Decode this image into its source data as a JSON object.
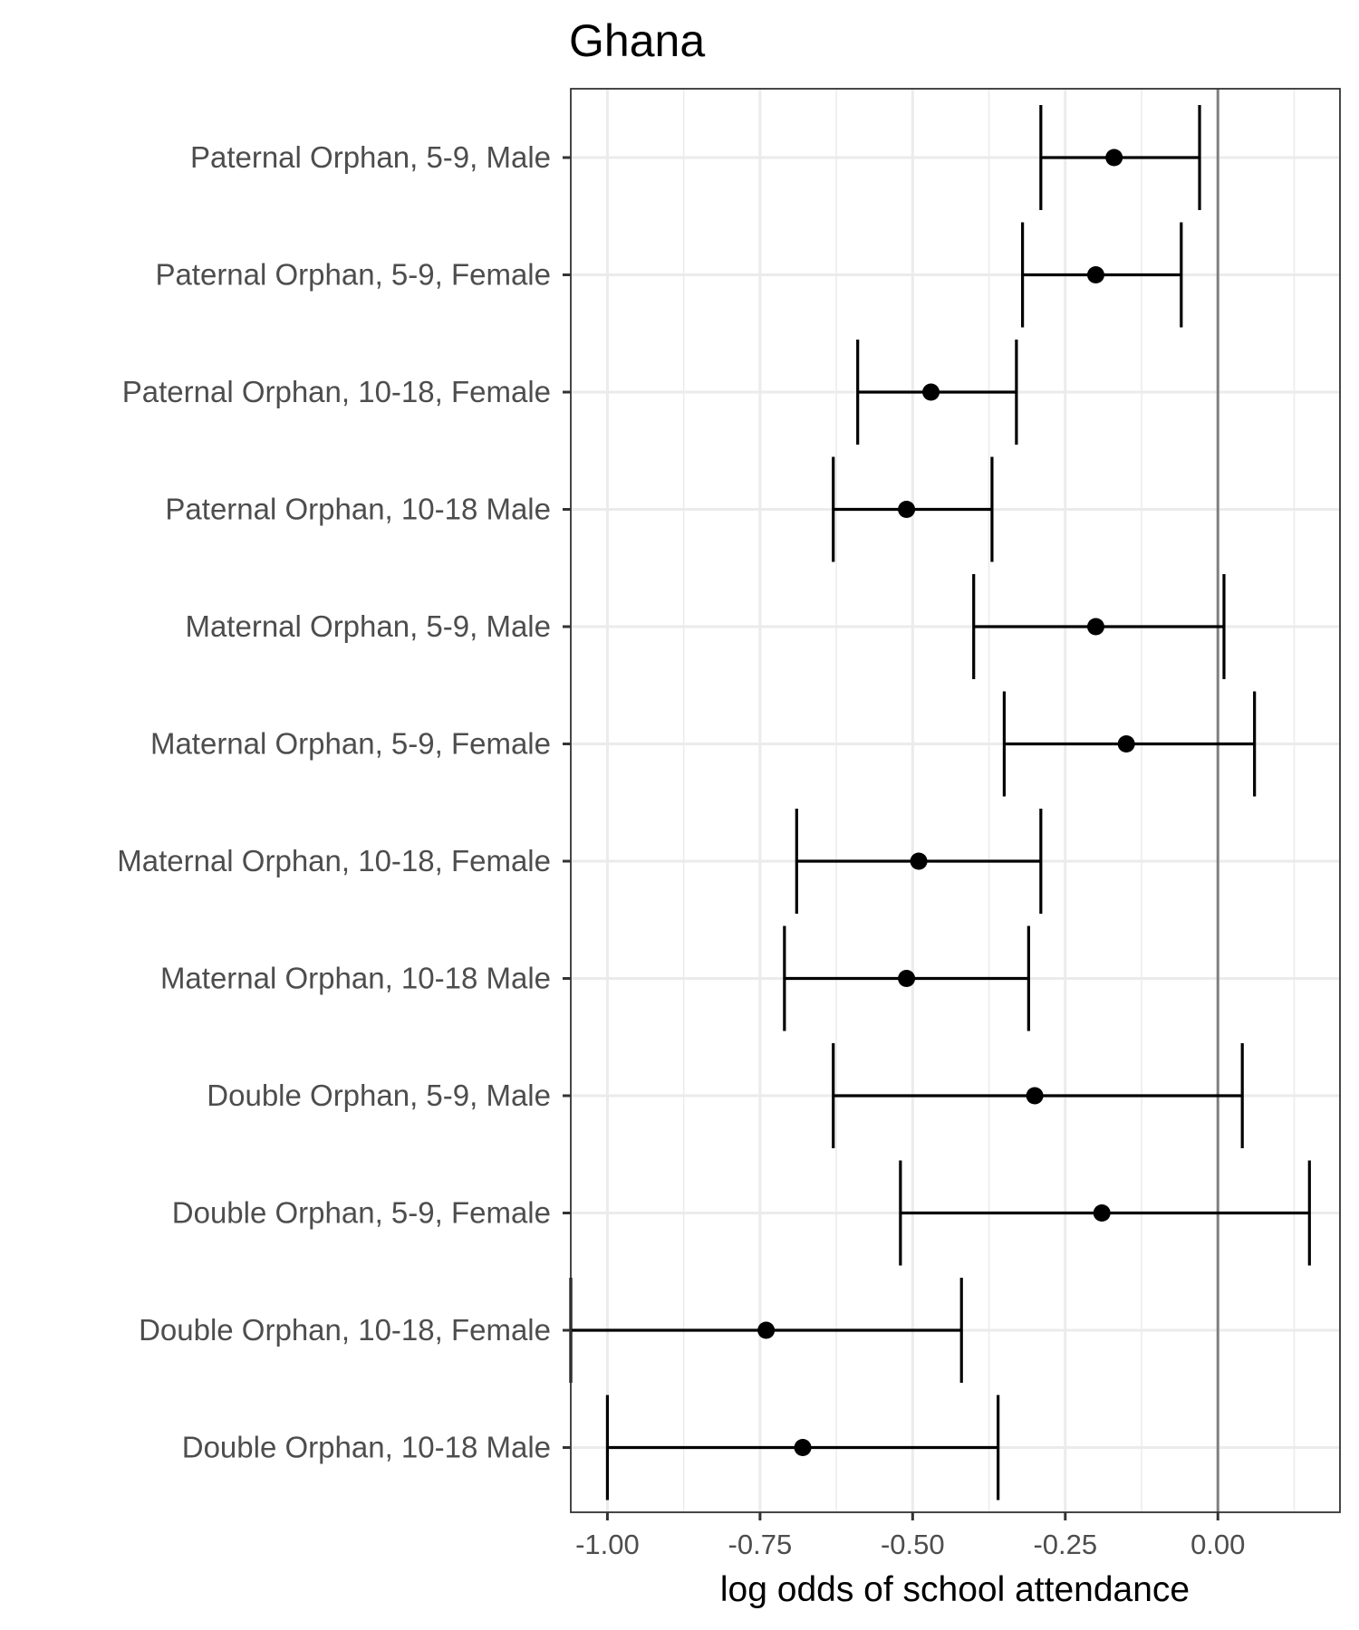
{
  "chart_data": {
    "type": "scatter",
    "title": "Ghana",
    "xlabel": "log odds of school attendance",
    "ylabel": "",
    "xlim": [
      -1.06,
      0.2
    ],
    "xticks": [
      -1.0,
      -0.75,
      -0.5,
      -0.25,
      0.0
    ],
    "xtick_labels": [
      "-1.00",
      "-0.75",
      "-0.50",
      "-0.25",
      "0.00"
    ],
    "reference_line_x": 0,
    "grid": true,
    "categories": [
      "Paternal Orphan, 5-9, Male",
      "Paternal Orphan, 5-9, Female",
      "Paternal Orphan, 10-18, Female",
      "Paternal Orphan, 10-18 Male",
      "Maternal Orphan, 5-9, Male",
      "Maternal Orphan, 5-9, Female",
      "Maternal Orphan, 10-18, Female",
      "Maternal Orphan, 10-18 Male",
      "Double Orphan, 5-9, Male",
      "Double Orphan, 5-9, Female",
      "Double Orphan, 10-18, Female",
      "Double Orphan, 10-18 Male"
    ],
    "estimates": [
      -0.17,
      -0.2,
      -0.47,
      -0.51,
      -0.2,
      -0.15,
      -0.49,
      -0.51,
      -0.3,
      -0.19,
      -0.74,
      -0.68
    ],
    "lower": [
      -0.29,
      -0.32,
      -0.59,
      -0.63,
      -0.4,
      -0.35,
      -0.69,
      -0.71,
      -0.63,
      -0.52,
      -1.06,
      -1.0
    ],
    "upper": [
      -0.03,
      -0.06,
      -0.33,
      -0.37,
      0.01,
      0.06,
      -0.29,
      -0.31,
      0.04,
      0.15,
      -0.42,
      -0.36
    ]
  }
}
